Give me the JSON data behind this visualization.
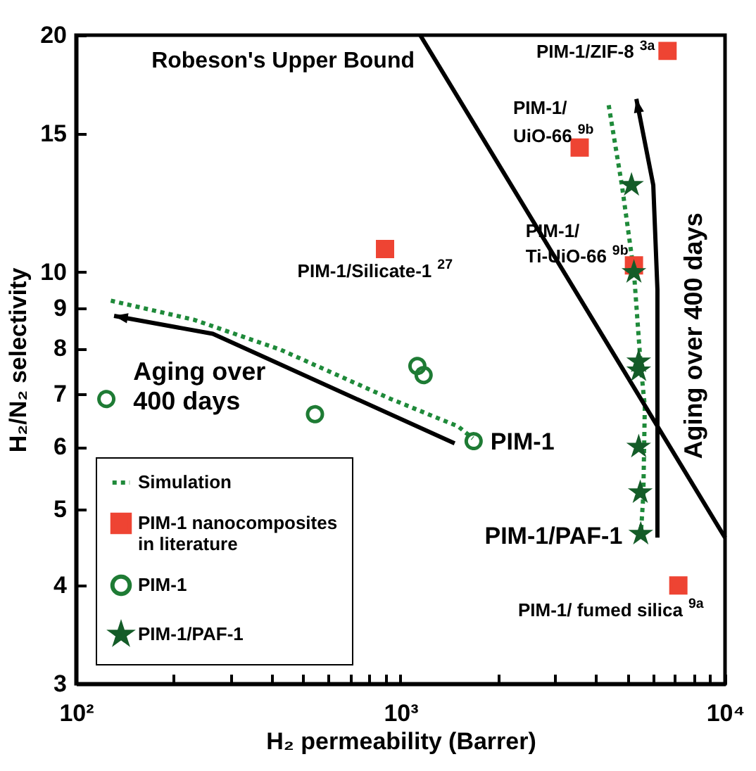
{
  "chart_data": {
    "type": "scatter",
    "xlabel": "H₂ permeability (Barrer)",
    "ylabel": "H₂/N₂ selectivity",
    "log": "xy",
    "xlim": [
      100,
      10000
    ],
    "ylim": [
      3,
      20
    ],
    "xticks": [
      {
        "value": 100,
        "label": "10²"
      },
      {
        "value": 200,
        "label": null
      },
      {
        "value": 300,
        "label": null
      },
      {
        "value": 400,
        "label": null
      },
      {
        "value": 500,
        "label": null
      },
      {
        "value": 600,
        "label": null
      },
      {
        "value": 700,
        "label": null
      },
      {
        "value": 800,
        "label": null
      },
      {
        "value": 900,
        "label": null
      },
      {
        "value": 1000,
        "label": "10³"
      },
      {
        "value": 2000,
        "label": null
      },
      {
        "value": 3000,
        "label": null
      },
      {
        "value": 4000,
        "label": null
      },
      {
        "value": 5000,
        "label": null
      },
      {
        "value": 6000,
        "label": null
      },
      {
        "value": 7000,
        "label": null
      },
      {
        "value": 8000,
        "label": null
      },
      {
        "value": 9000,
        "label": null
      },
      {
        "value": 10000,
        "label": "10⁴"
      }
    ],
    "yticks": [
      3,
      4,
      5,
      6,
      7,
      8,
      9,
      10,
      15,
      20
    ],
    "legend": "bottom left",
    "series": [
      {
        "name": "Simulation",
        "type": "line",
        "line_style": "dotted",
        "marker": "none",
        "color": "#1f8a3a",
        "x": [
          128,
          231,
          427,
          934,
          1504,
          1670
        ],
        "values": [
          9.2,
          8.7,
          7.97,
          6.9,
          6.37,
          6.15
        ]
      },
      {
        "type": "line",
        "line_style": "dotted",
        "marker": "none",
        "color": "#1f8a3a",
        "x": [
          4380,
          4810,
          5240,
          5500,
          5660,
          5600,
          5500
        ],
        "values": [
          16.3,
          12.9,
          10.0,
          7.6,
          6.75,
          5.2,
          4.63
        ]
      },
      {
        "type": "line",
        "line_style": "solid",
        "marker": "none",
        "color": "#000000",
        "x": [
          1150,
          10000
        ],
        "values": [
          20,
          4.6
        ]
      },
      {
        "name": "PIM-1 nanocomposites\nin literature",
        "type": "scatter",
        "marker": "square",
        "color": "#ee4433",
        "x": [
          6650,
          3565,
          896,
          5240,
          7180
        ],
        "values": [
          19.1,
          14.4,
          10.7,
          10.2,
          4.0
        ]
      },
      {
        "name": "PIM-1",
        "type": "scatter",
        "marker": "circle",
        "color": "#1e7b34",
        "x": [
          124,
          545,
          1127,
          1178,
          1680
        ],
        "values": [
          6.9,
          6.6,
          7.6,
          7.4,
          6.1
        ]
      },
      {
        "name": "PIM-1/PAF-1",
        "type": "scatter",
        "marker": "star",
        "color": "#145c28",
        "x": [
          5150,
          5240,
          5420,
          5420,
          5420,
          5480,
          5500
        ],
        "values": [
          12.9,
          10.0,
          7.7,
          7.5,
          6.0,
          5.25,
          4.65
        ]
      }
    ],
    "annotations": [
      {
        "text": "Robeson's Upper Bound",
        "x": 1150,
        "y": 20
      },
      {
        "text": "PIM-1/ZIF-8 $^{3a}$",
        "x": 6650,
        "y": 19.1
      },
      {
        "text": "PIM-1/\nUiO-66 $^{9b}$",
        "x": 3565,
        "y": 14.4
      },
      {
        "text": "PIM-1/Silicate-1 $^{27}$",
        "x": 896,
        "y": 10.7
      },
      {
        "text": "PIM-1/\nTi-UiO-66 $^{9b}$",
        "x": 5240,
        "y": 10.2
      },
      {
        "text": "PIM-1/ fumed silica $^{9a}$",
        "x": 7180,
        "y": 4.0
      },
      {
        "text": "PIM-1",
        "x": 1680,
        "y": 6.1
      },
      {
        "text": "PIM-1/PAF-1",
        "x": 5500,
        "y": 4.65
      },
      "Aging over\n400 days",
      "Aging over 400 days"
    ]
  }
}
